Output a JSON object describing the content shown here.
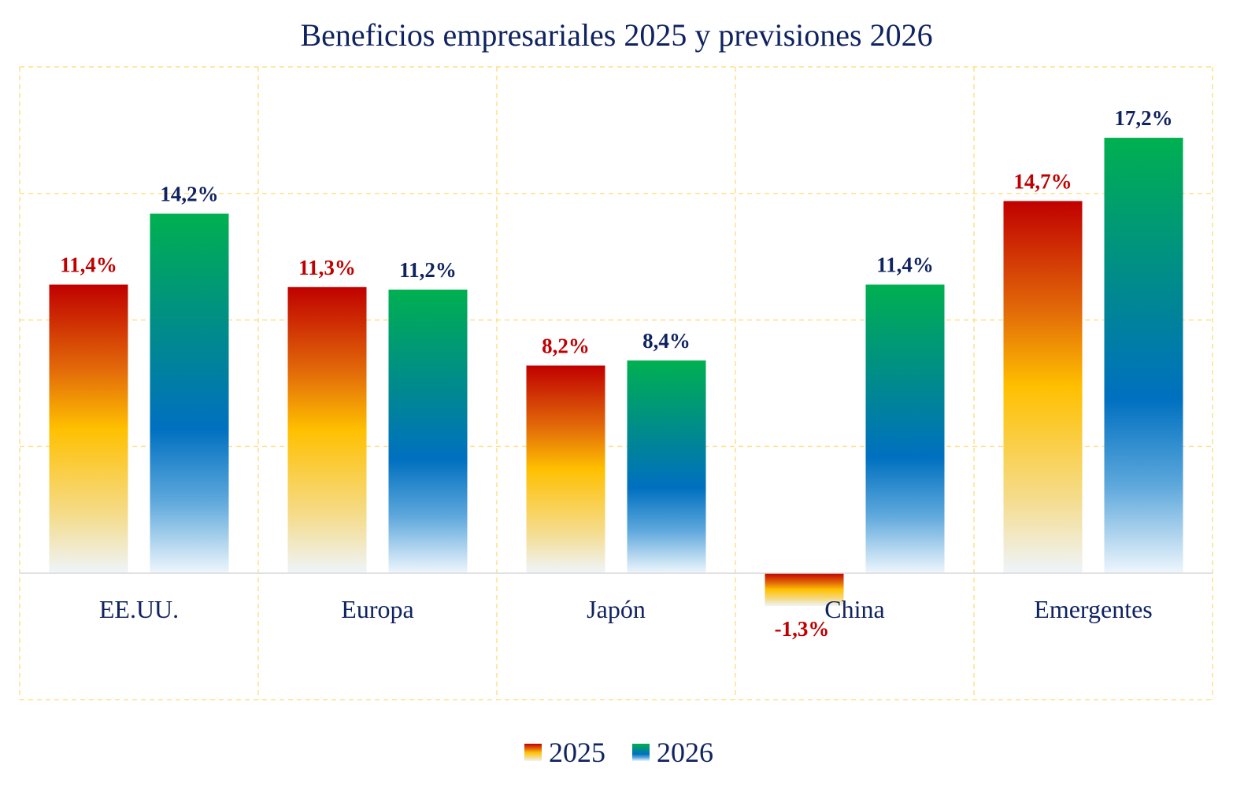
{
  "chart_data": {
    "type": "bar",
    "title": "Beneficios empresariales 2025 y previsiones 2026",
    "xlabel": "",
    "ylabel": "",
    "categories": [
      "EE.UU.",
      "Europa",
      "Japón",
      "China",
      "Emergentes"
    ],
    "series": [
      {
        "name": "2025",
        "values": [
          11.4,
          11.3,
          8.2,
          -1.3,
          14.7
        ],
        "labels": [
          "11,4%",
          "11,3%",
          "8,2%",
          "-1,3%",
          "14,7%"
        ],
        "label_color": "#c00000",
        "gradient": [
          "#c00000",
          "#e36c09",
          "#ffc000",
          "#f5dc8c",
          "#eef4fa"
        ]
      },
      {
        "name": "2026",
        "values": [
          14.2,
          11.2,
          8.4,
          11.4,
          17.2
        ],
        "labels": [
          "14,2%",
          "11,2%",
          "8,4%",
          "11,4%",
          "17,2%"
        ],
        "label_color": "#0f2360",
        "gradient": [
          "#00b050",
          "#00898f",
          "#0070c0",
          "#5ea8dc",
          "#eef6fc"
        ]
      }
    ],
    "ylim": [
      -5,
      20
    ],
    "ytick_step": 5,
    "grid": true,
    "grid_color": "#ffe08a",
    "axis_color": "#d9d9d9",
    "text_color": "#0f2360",
    "legend": {
      "position": "bottom",
      "entries": [
        "2025",
        "2026"
      ]
    }
  }
}
